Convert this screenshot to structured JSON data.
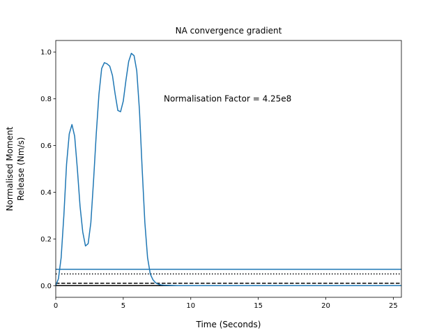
{
  "chart_data": {
    "type": "line",
    "title": "NA convergence gradient",
    "xlabel": "Time (Seconds)",
    "ylabel_lines": [
      "Normalised Moment",
      "Release (Nm/s)"
    ],
    "xlim": [
      0,
      25.6
    ],
    "ylim": [
      -0.05,
      1.05
    ],
    "xticks": [
      0,
      5,
      10,
      15,
      20,
      25
    ],
    "yticks": [
      0.0,
      0.2,
      0.4,
      0.6,
      0.8,
      1.0
    ],
    "grid": false,
    "annotation": {
      "text": "Normalisation Factor = 4.25e8",
      "x": 8.0,
      "y": 0.8
    },
    "colors": {
      "series": "#1f77b4",
      "reference": "#000000"
    },
    "series": [
      {
        "x": [
          0,
          0.2,
          0.4,
          0.6,
          0.8,
          1.0,
          1.2,
          1.4,
          1.6,
          1.8,
          2.0,
          2.2,
          2.4,
          2.6,
          2.8,
          3.0,
          3.2,
          3.4,
          3.6,
          3.8,
          4.0,
          4.2,
          4.4,
          4.6,
          4.8,
          5.0,
          5.2,
          5.4,
          5.6,
          5.8,
          6.0,
          6.2,
          6.4,
          6.6,
          6.8,
          7.0,
          7.2,
          7.4,
          7.6,
          7.8,
          8.0,
          9.0,
          12.0,
          16.0,
          20.0,
          25.6
        ],
        "values": [
          0.0,
          0.03,
          0.12,
          0.3,
          0.52,
          0.65,
          0.69,
          0.64,
          0.5,
          0.34,
          0.23,
          0.17,
          0.18,
          0.27,
          0.45,
          0.65,
          0.82,
          0.93,
          0.955,
          0.95,
          0.94,
          0.9,
          0.82,
          0.75,
          0.745,
          0.79,
          0.88,
          0.96,
          0.995,
          0.985,
          0.92,
          0.75,
          0.5,
          0.27,
          0.12,
          0.05,
          0.025,
          0.012,
          0.006,
          0.003,
          0.002,
          0.0,
          0.0,
          0.0,
          0.0,
          0.0
        ]
      }
    ],
    "reference_lines": [
      {
        "y": 0.07,
        "style": "solid",
        "color": "#1f77b4"
      },
      {
        "y": 0.05,
        "style": "dotted",
        "color": "#000000"
      },
      {
        "y": 0.01,
        "style": "dashed",
        "color": "#000000"
      },
      {
        "y": 0.0,
        "style": "solid",
        "color": "#000000"
      }
    ]
  }
}
